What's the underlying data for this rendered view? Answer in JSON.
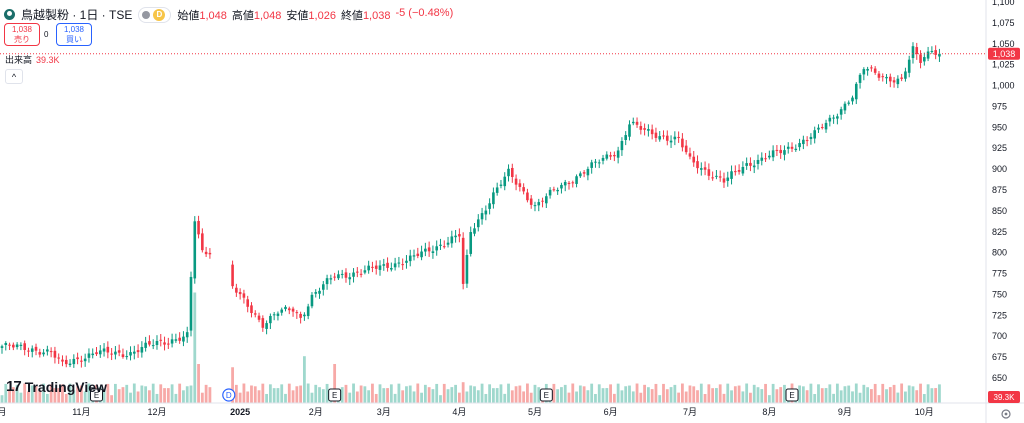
{
  "header": {
    "title": "鳥越製粉 · 1日 · TSE",
    "ohlc": [
      {
        "label": "始値",
        "value": "1,048"
      },
      {
        "label": "高値",
        "value": "1,048"
      },
      {
        "label": "安値",
        "value": "1,026"
      },
      {
        "label": "終値",
        "value": "1,038"
      }
    ],
    "change": "-5 (−0.48%)",
    "badge": "D"
  },
  "trade": {
    "sell_price": "1,038",
    "sell_label": "売り",
    "buy_price": "1,038",
    "buy_label": "買い",
    "spread": "0"
  },
  "volume_legend": {
    "label": "出来高",
    "value": "39.3K"
  },
  "watermark": "TradingView",
  "colors": {
    "up": "#089981",
    "down": "#f23645",
    "up_vol": "#9fd8cd",
    "down_vol": "#f7a9a7",
    "last_price": "#f23645",
    "grid": "#ffffff"
  },
  "chart_data": {
    "type": "candlestick",
    "price_axis": {
      "ticks": [
        "1,100",
        "1,075",
        "1,050",
        "1,025",
        "1,000",
        "975",
        "950",
        "925",
        "900",
        "875",
        "850",
        "825",
        "800",
        "775",
        "750",
        "725",
        "700",
        "675",
        "650"
      ],
      "range": [
        640,
        1100
      ]
    },
    "time_axis": [
      {
        "label": "月",
        "index": 0
      },
      {
        "label": "11月",
        "index": 21
      },
      {
        "label": "12月",
        "index": 41
      },
      {
        "label": "2025",
        "index": 63
      },
      {
        "label": "2月",
        "index": 83
      },
      {
        "label": "3月",
        "index": 101
      },
      {
        "label": "4月",
        "index": 121
      },
      {
        "label": "5月",
        "index": 141
      },
      {
        "label": "6月",
        "index": 161
      },
      {
        "label": "7月",
        "index": 182
      },
      {
        "label": "8月",
        "index": 203
      },
      {
        "label": "9月",
        "index": 223
      },
      {
        "label": "10月",
        "index": 244
      }
    ],
    "last_price": 1038,
    "last_price_label": "1,038",
    "last_volume_label": "39.3K",
    "event_markers": [
      {
        "label": "E",
        "index": 25
      },
      {
        "label": "D",
        "index": 60
      },
      {
        "label": "E",
        "index": 88
      },
      {
        "label": "E",
        "index": 144
      },
      {
        "label": "E",
        "index": 209
      }
    ],
    "anchors": [
      [
        0,
        688
      ],
      [
        8,
        685
      ],
      [
        13,
        680
      ],
      [
        16,
        665
      ],
      [
        19,
        672
      ],
      [
        25,
        680
      ],
      [
        34,
        680
      ],
      [
        41,
        692
      ],
      [
        49,
        700
      ],
      [
        51,
        838
      ],
      [
        53,
        800
      ],
      [
        55,
        802
      ],
      [
        59,
        802
      ],
      [
        61,
        758
      ],
      [
        69,
        715
      ],
      [
        73,
        728
      ],
      [
        77,
        732
      ],
      [
        79,
        722
      ],
      [
        82,
        748
      ],
      [
        88,
        772
      ],
      [
        96,
        778
      ],
      [
        108,
        792
      ],
      [
        115,
        808
      ],
      [
        121,
        820
      ],
      [
        122,
        760
      ],
      [
        124,
        825
      ],
      [
        130,
        870
      ],
      [
        134,
        895
      ],
      [
        141,
        856
      ],
      [
        148,
        880
      ],
      [
        157,
        906
      ],
      [
        163,
        923
      ],
      [
        166,
        955
      ],
      [
        170,
        945
      ],
      [
        176,
        938
      ],
      [
        179,
        935
      ],
      [
        182,
        910
      ],
      [
        191,
        885
      ],
      [
        197,
        906
      ],
      [
        207,
        922
      ],
      [
        215,
        942
      ],
      [
        219,
        958
      ],
      [
        225,
        988
      ],
      [
        228,
        1020
      ],
      [
        234,
        1010
      ],
      [
        238,
        1005
      ],
      [
        241,
        1042
      ],
      [
        243,
        1030
      ],
      [
        246,
        1045
      ],
      [
        248,
        1038
      ]
    ],
    "volume_spikes": [
      {
        "index": 51,
        "value": 17
      },
      {
        "index": 52,
        "value": 6
      },
      {
        "index": 61,
        "value": 5.5
      },
      {
        "index": 80,
        "value": 7.2
      },
      {
        "index": 88,
        "value": 6
      },
      {
        "index": 122,
        "value": 3.2
      }
    ]
  }
}
